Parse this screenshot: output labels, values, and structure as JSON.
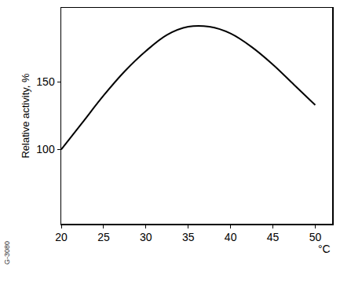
{
  "chart_data": {
    "type": "line",
    "y_label": "Relative activity, %",
    "x_label": "°C",
    "annotations": [
      "G-3080"
    ],
    "x": [
      20,
      22.5,
      25,
      27.5,
      30,
      32.5,
      35,
      37.5,
      40,
      42.5,
      45,
      47.5,
      50
    ],
    "values": [
      100,
      120,
      140,
      158,
      173,
      185,
      191,
      191,
      186,
      176,
      163,
      148,
      133
    ],
    "color": "#000000",
    "xlim": [
      20,
      52
    ],
    "xticks": [
      20,
      25,
      30,
      35,
      40,
      45,
      50
    ],
    "ylim": [
      45,
      205
    ],
    "yticks": [
      100,
      150
    ],
    "grid": false
  }
}
